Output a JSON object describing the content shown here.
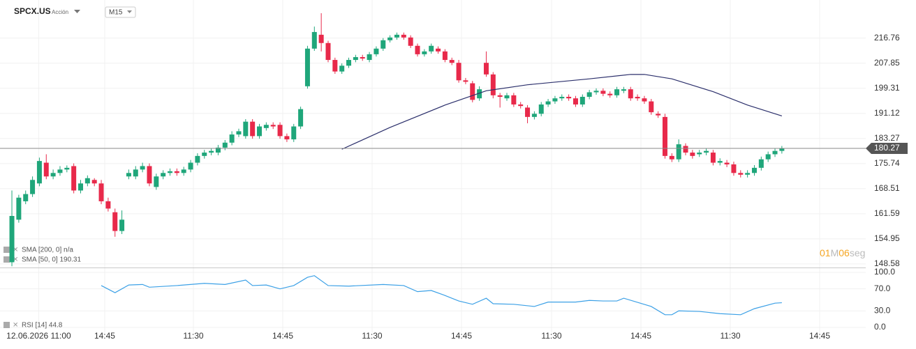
{
  "header": {
    "symbol": "SPCX.US",
    "asset_type": "Acción",
    "timeframe": "M15"
  },
  "chart_data": {
    "type": "candlestick",
    "log_scale": true,
    "grid": true,
    "up_color": "#1fa67a",
    "down_color": "#e8294a",
    "xlim": [
      -1.73,
      124.2
    ],
    "xticks": [
      {
        "value": 3.9,
        "label": "12.06.2026 11:00"
      },
      {
        "value": 13.5,
        "label": "14:45"
      },
      {
        "value": 26.4,
        "label": "11:30"
      },
      {
        "value": 39.4,
        "label": "14:45"
      },
      {
        "value": 52.4,
        "label": "11:30"
      },
      {
        "value": 65.4,
        "label": "14:45"
      },
      {
        "value": 78.5,
        "label": "11:30"
      },
      {
        "value": 91.5,
        "label": "14:45"
      },
      {
        "value": 104.5,
        "label": "11:30"
      },
      {
        "value": 117.5,
        "label": "14:45"
      }
    ],
    "ylim": [
      147.7,
      228.9
    ],
    "yticks": [
      216.76,
      207.85,
      199.31,
      191.12,
      183.27,
      175.74,
      168.51,
      161.59,
      154.95,
      148.58
    ],
    "candles": {
      "open": [
        149,
        160,
        165,
        167,
        170,
        176,
        172,
        173,
        174,
        175,
        168,
        170,
        171,
        170,
        165,
        162,
        157,
        172,
        172,
        174,
        175,
        169,
        172,
        173,
        173.5,
        173,
        174,
        176,
        178,
        179,
        179,
        180.5,
        182,
        184.5,
        184,
        188.5,
        184,
        186.5,
        187.5,
        187.5,
        184,
        183,
        187,
        200,
        213,
        218,
        215,
        209,
        205,
        207,
        209,
        210,
        209,
        211,
        213,
        216,
        217,
        218,
        217,
        214,
        211,
        212,
        213,
        212,
        209,
        208,
        202,
        201,
        196,
        208,
        204,
        197,
        196,
        197,
        194,
        193,
        190,
        191,
        194,
        195,
        196,
        196.5,
        196,
        194,
        196.5,
        198,
        198.5,
        197.5,
        197,
        198.5,
        199,
        196.5,
        196,
        195,
        191,
        190,
        178,
        177,
        181,
        179,
        178.5,
        179,
        179,
        176,
        176,
        175.5,
        173,
        172.5,
        173,
        174.5,
        177,
        178.5,
        179.5
      ],
      "high": [
        168,
        166.8,
        168,
        172,
        177.5,
        178.5,
        174,
        175,
        175.2,
        175.8,
        171,
        172.3,
        171.5,
        171,
        166,
        163,
        162.5,
        174,
        175,
        176,
        175.8,
        172.8,
        173.8,
        174.3,
        174.3,
        174.8,
        176.8,
        178.8,
        179.8,
        180.3,
        181.3,
        182.8,
        185.5,
        186.3,
        189.3,
        189.3,
        187.8,
        188.3,
        188.3,
        188.3,
        184.8,
        187.8,
        193.3,
        214,
        221,
        226,
        215.8,
        209.8,
        207.8,
        209.8,
        210.8,
        210.8,
        211.8,
        213.8,
        216.8,
        217.8,
        218.8,
        218.8,
        217.8,
        214.8,
        212.8,
        214.8,
        213.8,
        212.8,
        209.8,
        209,
        202.8,
        201.8,
        200,
        212,
        204.8,
        197.8,
        197.8,
        197.8,
        194.8,
        193.8,
        191.8,
        194.8,
        195.8,
        196.8,
        197.3,
        197.3,
        196.8,
        197.3,
        198.8,
        199.3,
        199.3,
        198.3,
        199.8,
        199.8,
        199.8,
        197.3,
        196.8,
        195.8,
        191.8,
        191,
        178.8,
        183,
        181.8,
        179.8,
        179.8,
        180.3,
        179.8,
        177.3,
        176.8,
        176.3,
        173.8,
        173.8,
        175.3,
        177.8,
        179.3,
        180.3,
        181
      ],
      "low": [
        148,
        159.2,
        164.2,
        166.2,
        169.2,
        171.2,
        171.2,
        172.2,
        173.2,
        167.2,
        167.2,
        169.2,
        169.2,
        164.2,
        162.2,
        155.5,
        156.2,
        171.2,
        171.2,
        173.2,
        169.2,
        168.2,
        171.2,
        172.2,
        172.2,
        172.2,
        173.2,
        175.2,
        177.2,
        178.2,
        178.2,
        179.7,
        181.2,
        183.7,
        183.2,
        183.2,
        183.2,
        185.7,
        186.2,
        183.2,
        182.2,
        182.2,
        186.2,
        199.2,
        212.2,
        212,
        208.2,
        204.2,
        204.2,
        206.2,
        208.2,
        208.7,
        208.2,
        210.2,
        212.2,
        215.2,
        216.2,
        216.2,
        213.2,
        210.2,
        210.2,
        211.2,
        211.2,
        208.2,
        207.2,
        201.2,
        200.7,
        194.7,
        195.2,
        203.2,
        196,
        193,
        195.2,
        193.2,
        192.7,
        188,
        189.2,
        190.2,
        193.2,
        194.2,
        195.2,
        195.2,
        193.2,
        193.2,
        195.7,
        197.2,
        196.7,
        196.2,
        196.2,
        197.7,
        195.2,
        195.2,
        194.2,
        190.7,
        189.7,
        177.2,
        176.2,
        176.2,
        178.2,
        177.2,
        177.7,
        178.2,
        175.2,
        175.2,
        174.7,
        172.2,
        171.7,
        171.7,
        172.2,
        173.7,
        176.2,
        177.7,
        178.7
      ],
      "close": [
        161,
        166,
        167,
        171,
        176.5,
        172,
        173,
        174,
        174.5,
        168,
        170,
        171.5,
        170,
        165,
        163,
        157,
        160,
        173,
        174,
        175,
        170,
        172,
        173,
        173.5,
        173,
        174,
        176,
        178,
        179,
        179.5,
        180.5,
        182,
        184.5,
        185.5,
        188.5,
        184,
        187,
        187.5,
        187,
        184,
        183,
        187,
        192.5,
        213,
        219,
        215,
        209,
        205,
        207,
        209,
        210,
        209.5,
        211,
        213,
        216,
        217,
        218,
        217,
        214,
        211,
        212,
        214,
        212,
        209,
        208,
        202,
        201.5,
        195.5,
        199,
        204,
        197,
        196.5,
        197,
        194,
        193.5,
        190,
        191,
        194,
        195,
        196,
        196.5,
        196,
        194,
        196.5,
        198,
        198.5,
        197.5,
        197,
        199,
        199,
        196,
        196,
        195,
        191.5,
        190.5,
        178,
        177,
        181.5,
        179,
        178,
        179,
        179.5,
        176,
        176.5,
        175.5,
        173,
        172.5,
        173,
        174.5,
        177,
        178.5,
        179.5,
        180.27
      ]
    },
    "last_price": 180.27,
    "last_price_color": "#555555",
    "sma": [
      {
        "name": "SMA [200, 0] n/a"
      },
      {
        "name": "SMA [50, 0] 190.31",
        "color": "#2b2f6b",
        "x": [
          48,
          55,
          63,
          69,
          75,
          84,
          90,
          92,
          96,
          102,
          107,
          112
        ],
        "values": [
          180,
          186.7,
          193.8,
          198.5,
          200.5,
          202.5,
          204,
          204,
          202.5,
          198.2,
          193.8,
          190.31
        ]
      }
    ],
    "countdown": [
      "01",
      "M",
      "06",
      "seg"
    ],
    "rsi": {
      "name": "RSI [14] 44.8",
      "color": "#3ba0e6",
      "ylim": [
        -12.7,
        106.3
      ],
      "yticks": [
        {
          "value": 100,
          "label": "100.0"
        },
        {
          "value": 70,
          "label": "70.0"
        },
        {
          "value": 30,
          "label": "30.0"
        },
        {
          "value": 0,
          "label": "0.0"
        }
      ],
      "x": [
        13,
        15,
        17,
        19,
        20,
        24,
        28,
        31,
        34,
        35,
        37,
        39,
        41,
        43,
        44,
        46,
        49,
        54,
        57,
        59,
        61,
        63,
        65,
        67,
        69,
        70,
        73,
        76,
        78,
        82,
        84,
        86,
        88,
        89,
        93,
        95,
        96,
        97,
        100,
        103,
        106,
        108,
        111,
        112
      ],
      "values": [
        76,
        63,
        77,
        78,
        73,
        76,
        80,
        78,
        86,
        76,
        77,
        70,
        76,
        91,
        94,
        76,
        75,
        78,
        76,
        65,
        67,
        58,
        48,
        42,
        53,
        43,
        42,
        38,
        46,
        46,
        49,
        48,
        48,
        53,
        38,
        23,
        23,
        30,
        29,
        25,
        23,
        34,
        44,
        44.8
      ]
    }
  }
}
